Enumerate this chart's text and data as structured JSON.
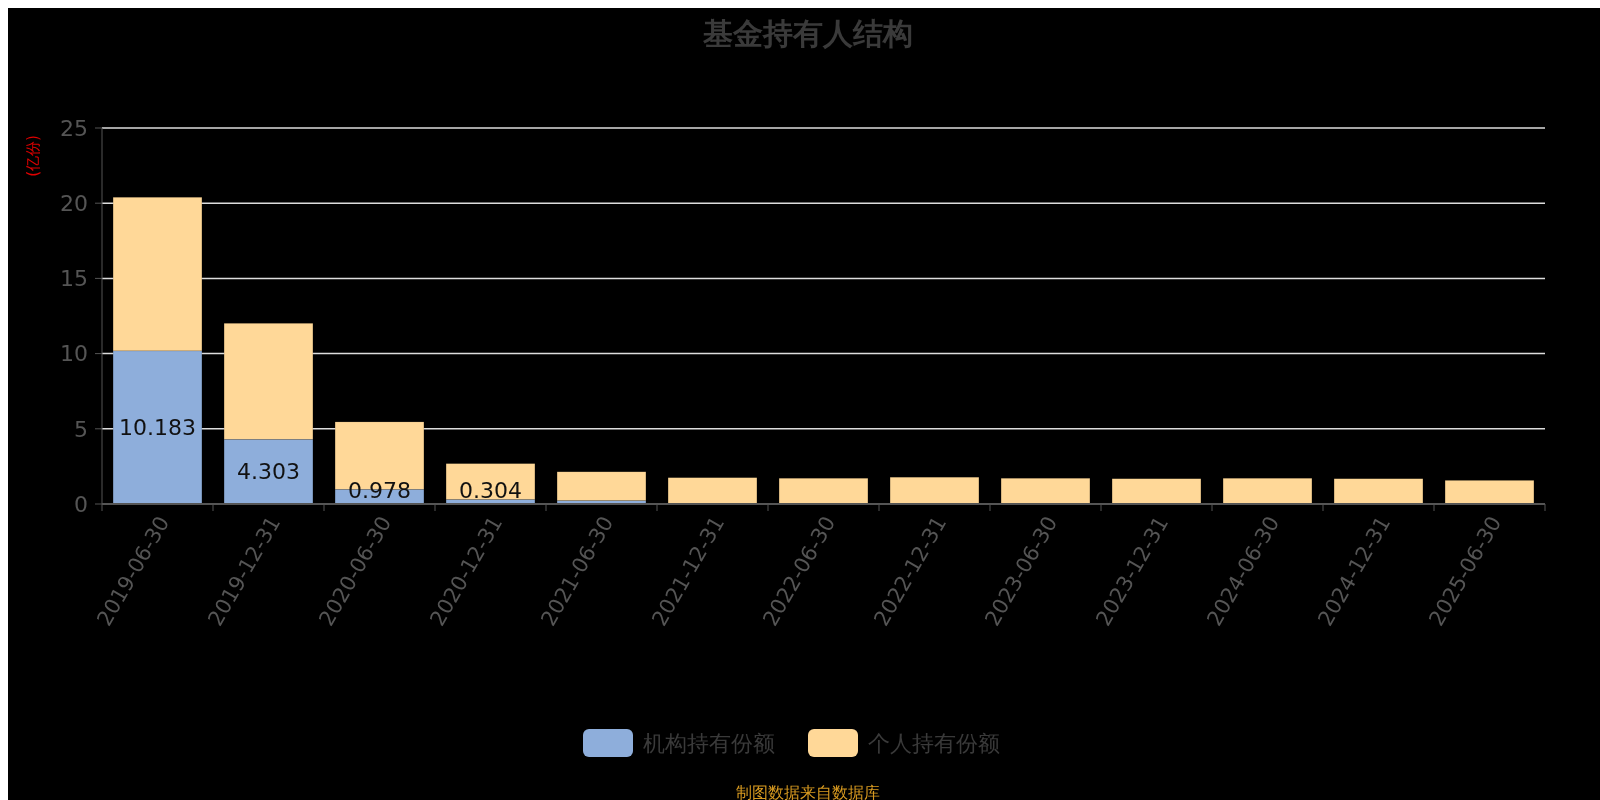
{
  "chart_data": {
    "type": "bar",
    "title": "基金持有人结构",
    "ylabel": "(亿份)",
    "stacked": true,
    "categories": [
      "2019-06-30",
      "2019-12-31",
      "2020-06-30",
      "2020-12-31",
      "2021-06-30",
      "2021-12-31",
      "2022-06-30",
      "2022-12-31",
      "2023-06-30",
      "2023-12-31",
      "2024-06-30",
      "2024-12-31",
      "2025-06-30"
    ],
    "series": [
      {
        "name": "机构持有份额",
        "color": "#8eaedb",
        "values": [
          10.183,
          4.303,
          0.978,
          0.304,
          0.23,
          null,
          null,
          null,
          null,
          null,
          null,
          null,
          null
        ],
        "value_labels": [
          "10.183",
          "4.303",
          "0.978",
          "0.304",
          null,
          null,
          null,
          null,
          null,
          null,
          null,
          null,
          null
        ]
      },
      {
        "name": "个人持有份额",
        "color": "#ffd898",
        "values": [
          10.21,
          7.71,
          4.48,
          2.38,
          1.91,
          1.75,
          1.71,
          1.78,
          1.71,
          1.68,
          1.71,
          1.68,
          1.57
        ]
      }
    ],
    "ylim": [
      0,
      25
    ],
    "yticks": [
      0,
      5,
      10,
      15,
      20,
      25
    ],
    "grid": "y",
    "legend": "bottom",
    "annotations": [
      "制图数据来自数据库"
    ]
  }
}
